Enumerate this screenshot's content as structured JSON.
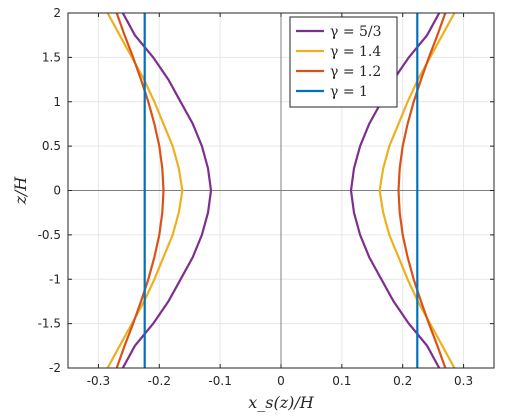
{
  "chart_data": {
    "type": "line",
    "title": "",
    "xlabel": "x_s(z)/H",
    "ylabel": "z/H",
    "xlim": [
      -0.35,
      0.35
    ],
    "ylim": [
      -2,
      2
    ],
    "grid": true,
    "legend_position": "top-right",
    "xticks": [
      -0.3,
      -0.2,
      -0.1,
      0,
      0.1,
      0.2,
      0.3
    ],
    "xtick_labels": [
      "-0.3",
      "-0.2",
      "-0.1",
      "0",
      "0.1",
      "0.2",
      "0.3"
    ],
    "yticks": [
      -2,
      -1.5,
      -1,
      -0.5,
      0,
      0.5,
      1,
      1.5,
      2
    ],
    "ytick_labels": [
      "-2",
      "-1.5",
      "-1",
      "-0.5",
      "0",
      "0.5",
      "1",
      "1.5",
      "2"
    ],
    "z": [
      -2,
      -1.75,
      -1.5,
      -1.25,
      -1,
      -0.75,
      -0.5,
      -0.25,
      0,
      0.25,
      0.5,
      0.75,
      1,
      1.25,
      1.5,
      1.75,
      2
    ],
    "series": [
      {
        "name": "γ = 5/3",
        "color": "#7E2F8E",
        "xs": [
          0.26,
          0.24,
          0.21,
          0.185,
          0.165,
          0.145,
          0.13,
          0.12,
          0.115,
          0.12,
          0.13,
          0.145,
          0.165,
          0.185,
          0.21,
          0.24,
          0.26
        ]
      },
      {
        "name": "γ = 1.4",
        "color": "#EDB120",
        "xs": [
          0.285,
          0.265,
          0.245,
          0.225,
          0.208,
          0.193,
          0.178,
          0.168,
          0.162,
          0.168,
          0.178,
          0.193,
          0.208,
          0.225,
          0.245,
          0.265,
          0.285
        ]
      },
      {
        "name": "γ = 1.2",
        "color": "#D95319",
        "xs": [
          0.27,
          0.257,
          0.243,
          0.23,
          0.218,
          0.208,
          0.2,
          0.195,
          0.193,
          0.195,
          0.2,
          0.208,
          0.218,
          0.23,
          0.243,
          0.257,
          0.27
        ]
      },
      {
        "name": "γ = 1",
        "color": "#0072BD",
        "xs": [
          0.224,
          0.224,
          0.224,
          0.224,
          0.224,
          0.224,
          0.224,
          0.224,
          0.224,
          0.224,
          0.224,
          0.224,
          0.224,
          0.224,
          0.224,
          0.224,
          0.224
        ]
      }
    ]
  }
}
